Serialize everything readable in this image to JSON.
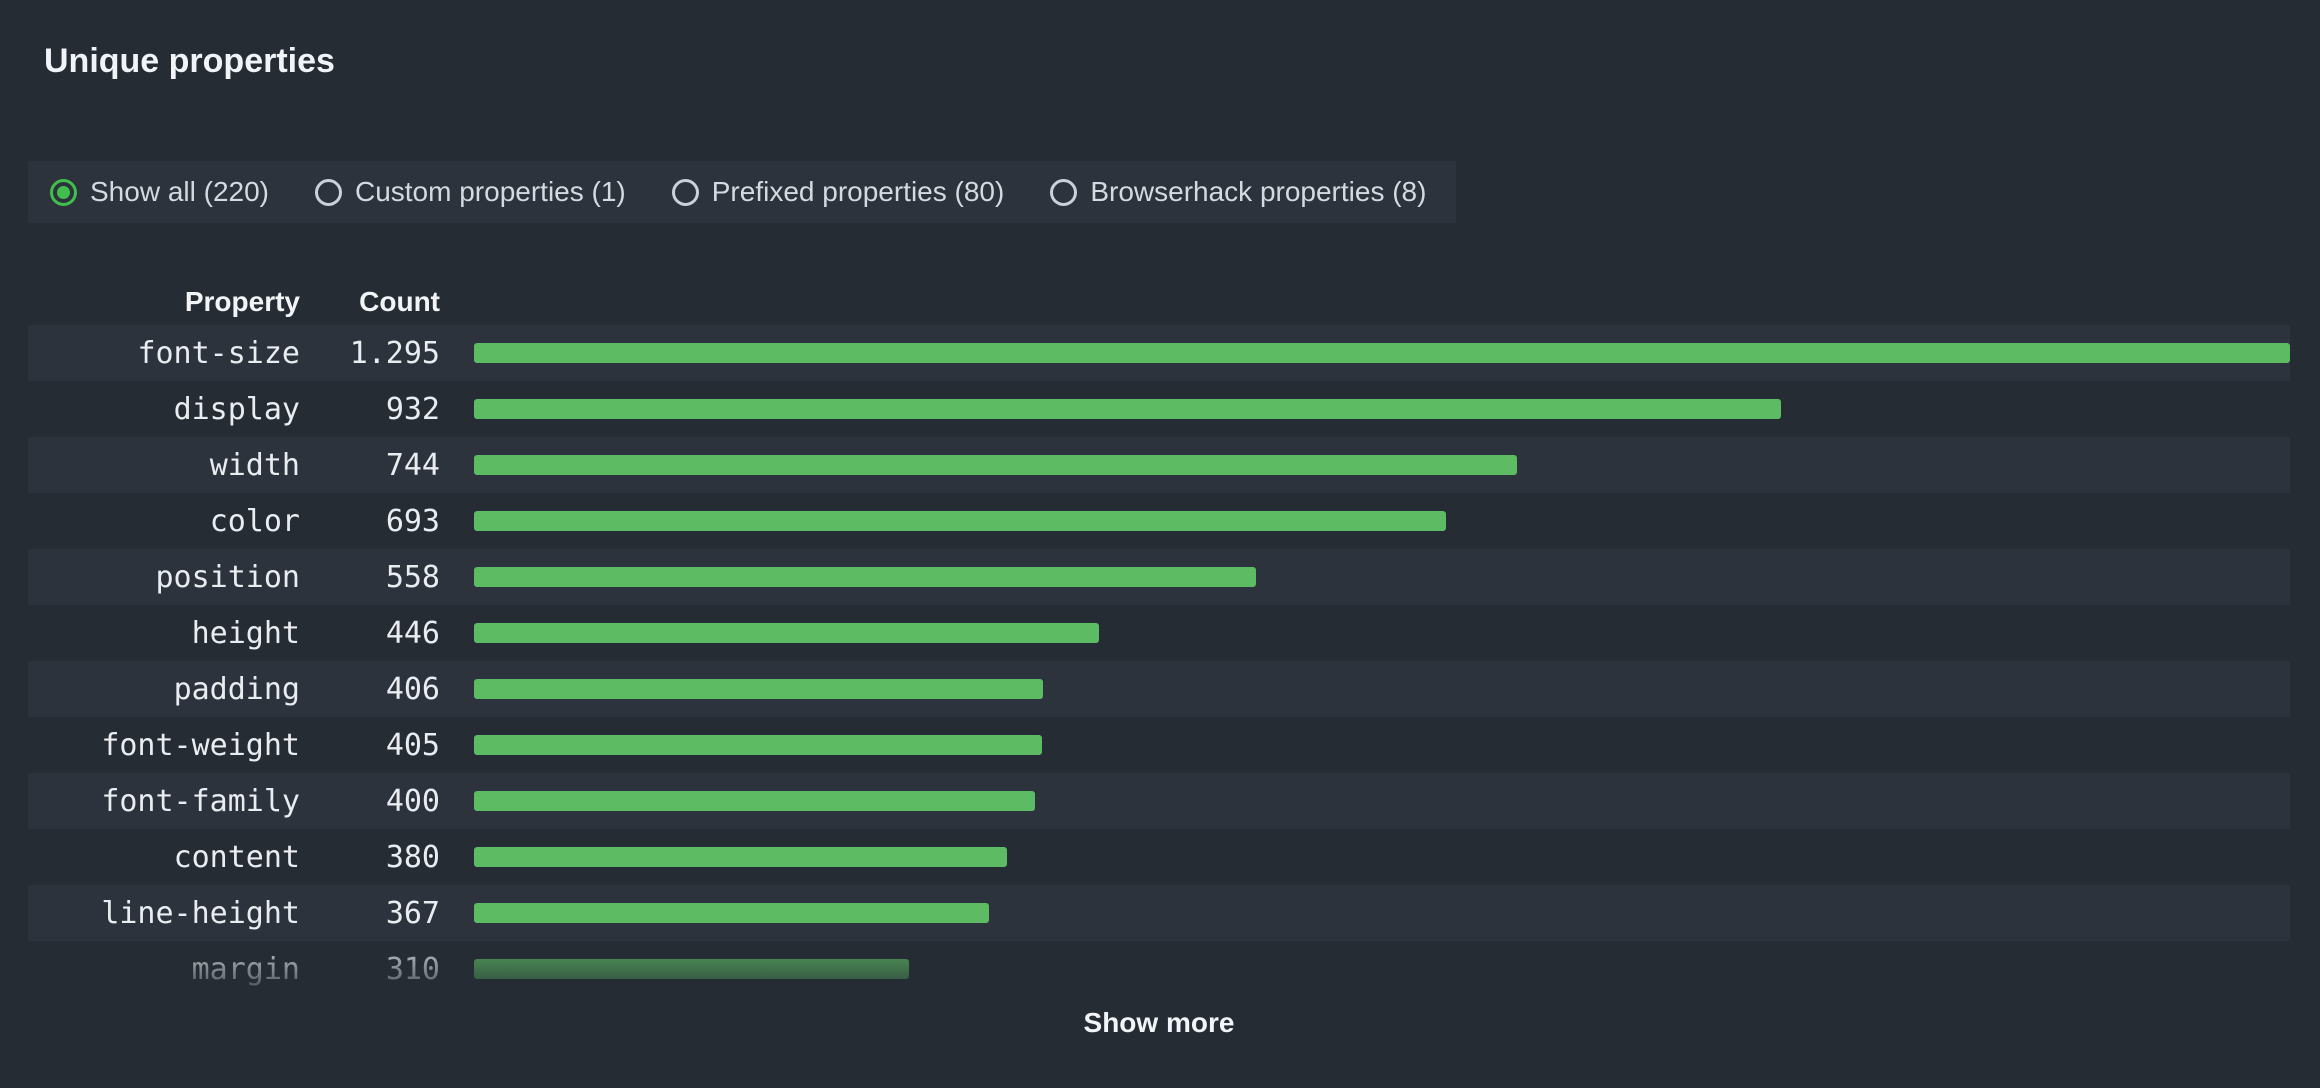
{
  "title": "Unique properties",
  "filters": [
    {
      "label": "Show all (220)",
      "selected": true
    },
    {
      "label": "Custom properties (1)",
      "selected": false
    },
    {
      "label": "Prefixed properties (80)",
      "selected": false
    },
    {
      "label": "Browserhack properties (8)",
      "selected": false
    }
  ],
  "table": {
    "headers": {
      "property": "Property",
      "count": "Count"
    }
  },
  "chart_data": {
    "type": "bar",
    "orientation": "horizontal",
    "title": "Unique properties",
    "categories": [
      "font-size",
      "display",
      "width",
      "color",
      "position",
      "height",
      "padding",
      "font-weight",
      "font-family",
      "content",
      "line-height",
      "margin"
    ],
    "values": [
      1295,
      932,
      744,
      693,
      558,
      446,
      406,
      405,
      400,
      380,
      367,
      310
    ],
    "value_labels": [
      "1.295",
      "932",
      "744",
      "693",
      "558",
      "446",
      "406",
      "405",
      "400",
      "380",
      "367",
      "310"
    ],
    "max_value": 1295,
    "xlim": [
      0,
      1295
    ],
    "bar_color": "#5dbb63",
    "grid": false,
    "legend": false
  },
  "show_more_label": "Show more",
  "colors": {
    "background": "#262c34",
    "row_stripe": "#2c333c",
    "bar": "#5dbb63",
    "radio_selected": "#41bf4c",
    "text": "#f0f3f7"
  }
}
